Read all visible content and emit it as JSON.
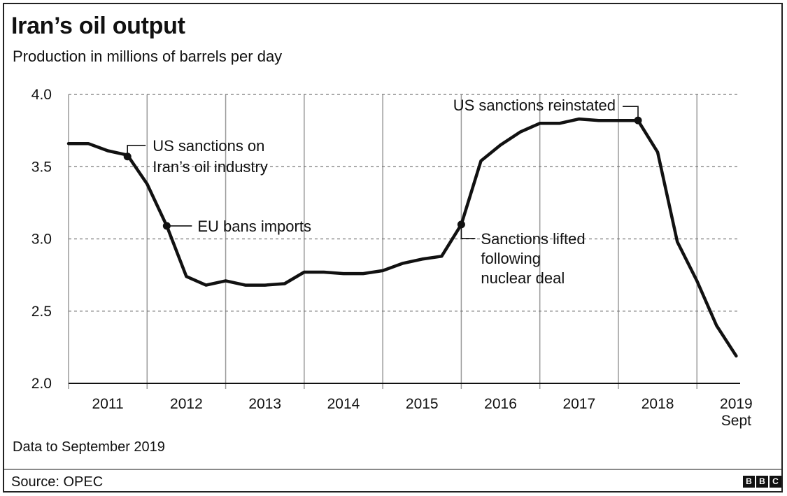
{
  "chart_data": {
    "type": "line",
    "title": "Iran’s oil output",
    "subtitle": "Production in millions of barrels per day",
    "ylim": [
      2.0,
      4.0
    ],
    "y_ticks": [
      "2.0",
      "2.5",
      "3.0",
      "3.5",
      "4.0"
    ],
    "x_tick_labels": [
      "2011",
      "2012",
      "2013",
      "2014",
      "2015",
      "2016",
      "2017",
      "2018",
      "2019"
    ],
    "x_last_sub": "Sept",
    "grid": "horizontal dashed, vertical solid year separators",
    "series": [
      {
        "color": "#111111",
        "points": [
          {
            "x": 2010.0,
            "y": 3.66
          },
          {
            "x": 2010.25,
            "y": 3.66
          },
          {
            "x": 2010.5,
            "y": 3.61
          },
          {
            "x": 2010.75,
            "y": 3.58
          },
          {
            "x": 2011.0,
            "y": 3.38
          },
          {
            "x": 2011.25,
            "y": 3.09
          },
          {
            "x": 2011.5,
            "y": 2.74
          },
          {
            "x": 2011.75,
            "y": 2.68
          },
          {
            "x": 2012.0,
            "y": 2.71
          },
          {
            "x": 2012.25,
            "y": 2.68
          },
          {
            "x": 2012.5,
            "y": 2.68
          },
          {
            "x": 2012.75,
            "y": 2.69
          },
          {
            "x": 2013.0,
            "y": 2.77
          },
          {
            "x": 2013.25,
            "y": 2.77
          },
          {
            "x": 2013.5,
            "y": 2.76
          },
          {
            "x": 2013.75,
            "y": 2.76
          },
          {
            "x": 2014.0,
            "y": 2.78
          },
          {
            "x": 2014.25,
            "y": 2.83
          },
          {
            "x": 2014.5,
            "y": 2.86
          },
          {
            "x": 2014.75,
            "y": 2.88
          },
          {
            "x": 2015.0,
            "y": 3.1
          },
          {
            "x": 2015.25,
            "y": 3.54
          },
          {
            "x": 2015.5,
            "y": 3.65
          },
          {
            "x": 2015.75,
            "y": 3.74
          },
          {
            "x": 2016.0,
            "y": 3.8
          },
          {
            "x": 2016.25,
            "y": 3.8
          },
          {
            "x": 2016.5,
            "y": 3.83
          },
          {
            "x": 2016.75,
            "y": 3.82
          },
          {
            "x": 2017.0,
            "y": 3.82
          },
          {
            "x": 2017.25,
            "y": 3.82
          },
          {
            "x": 2017.5,
            "y": 3.6
          },
          {
            "x": 2017.75,
            "y": 2.98
          },
          {
            "x": 2018.0,
            "y": 2.71
          },
          {
            "x": 2018.25,
            "y": 2.4
          },
          {
            "x": 2018.5,
            "y": 2.19
          }
        ]
      }
    ],
    "annotations": [
      {
        "x": 2010.75,
        "y": 3.57,
        "lines": [
          "US sanctions on",
          "Iran’s oil industry"
        ]
      },
      {
        "x": 2011.25,
        "y": 3.09,
        "lines": [
          "EU bans imports"
        ]
      },
      {
        "x": 2015.0,
        "y": 3.1,
        "lines": [
          "Sanctions lifted",
          "following",
          "nuclear deal"
        ]
      },
      {
        "x": 2017.25,
        "y": 3.82,
        "lines": [
          "US sanctions reinstated"
        ]
      }
    ]
  },
  "footer": {
    "note": "Data to September 2019",
    "source": "Source: OPEC",
    "logo_letters": [
      "B",
      "B",
      "C"
    ]
  }
}
